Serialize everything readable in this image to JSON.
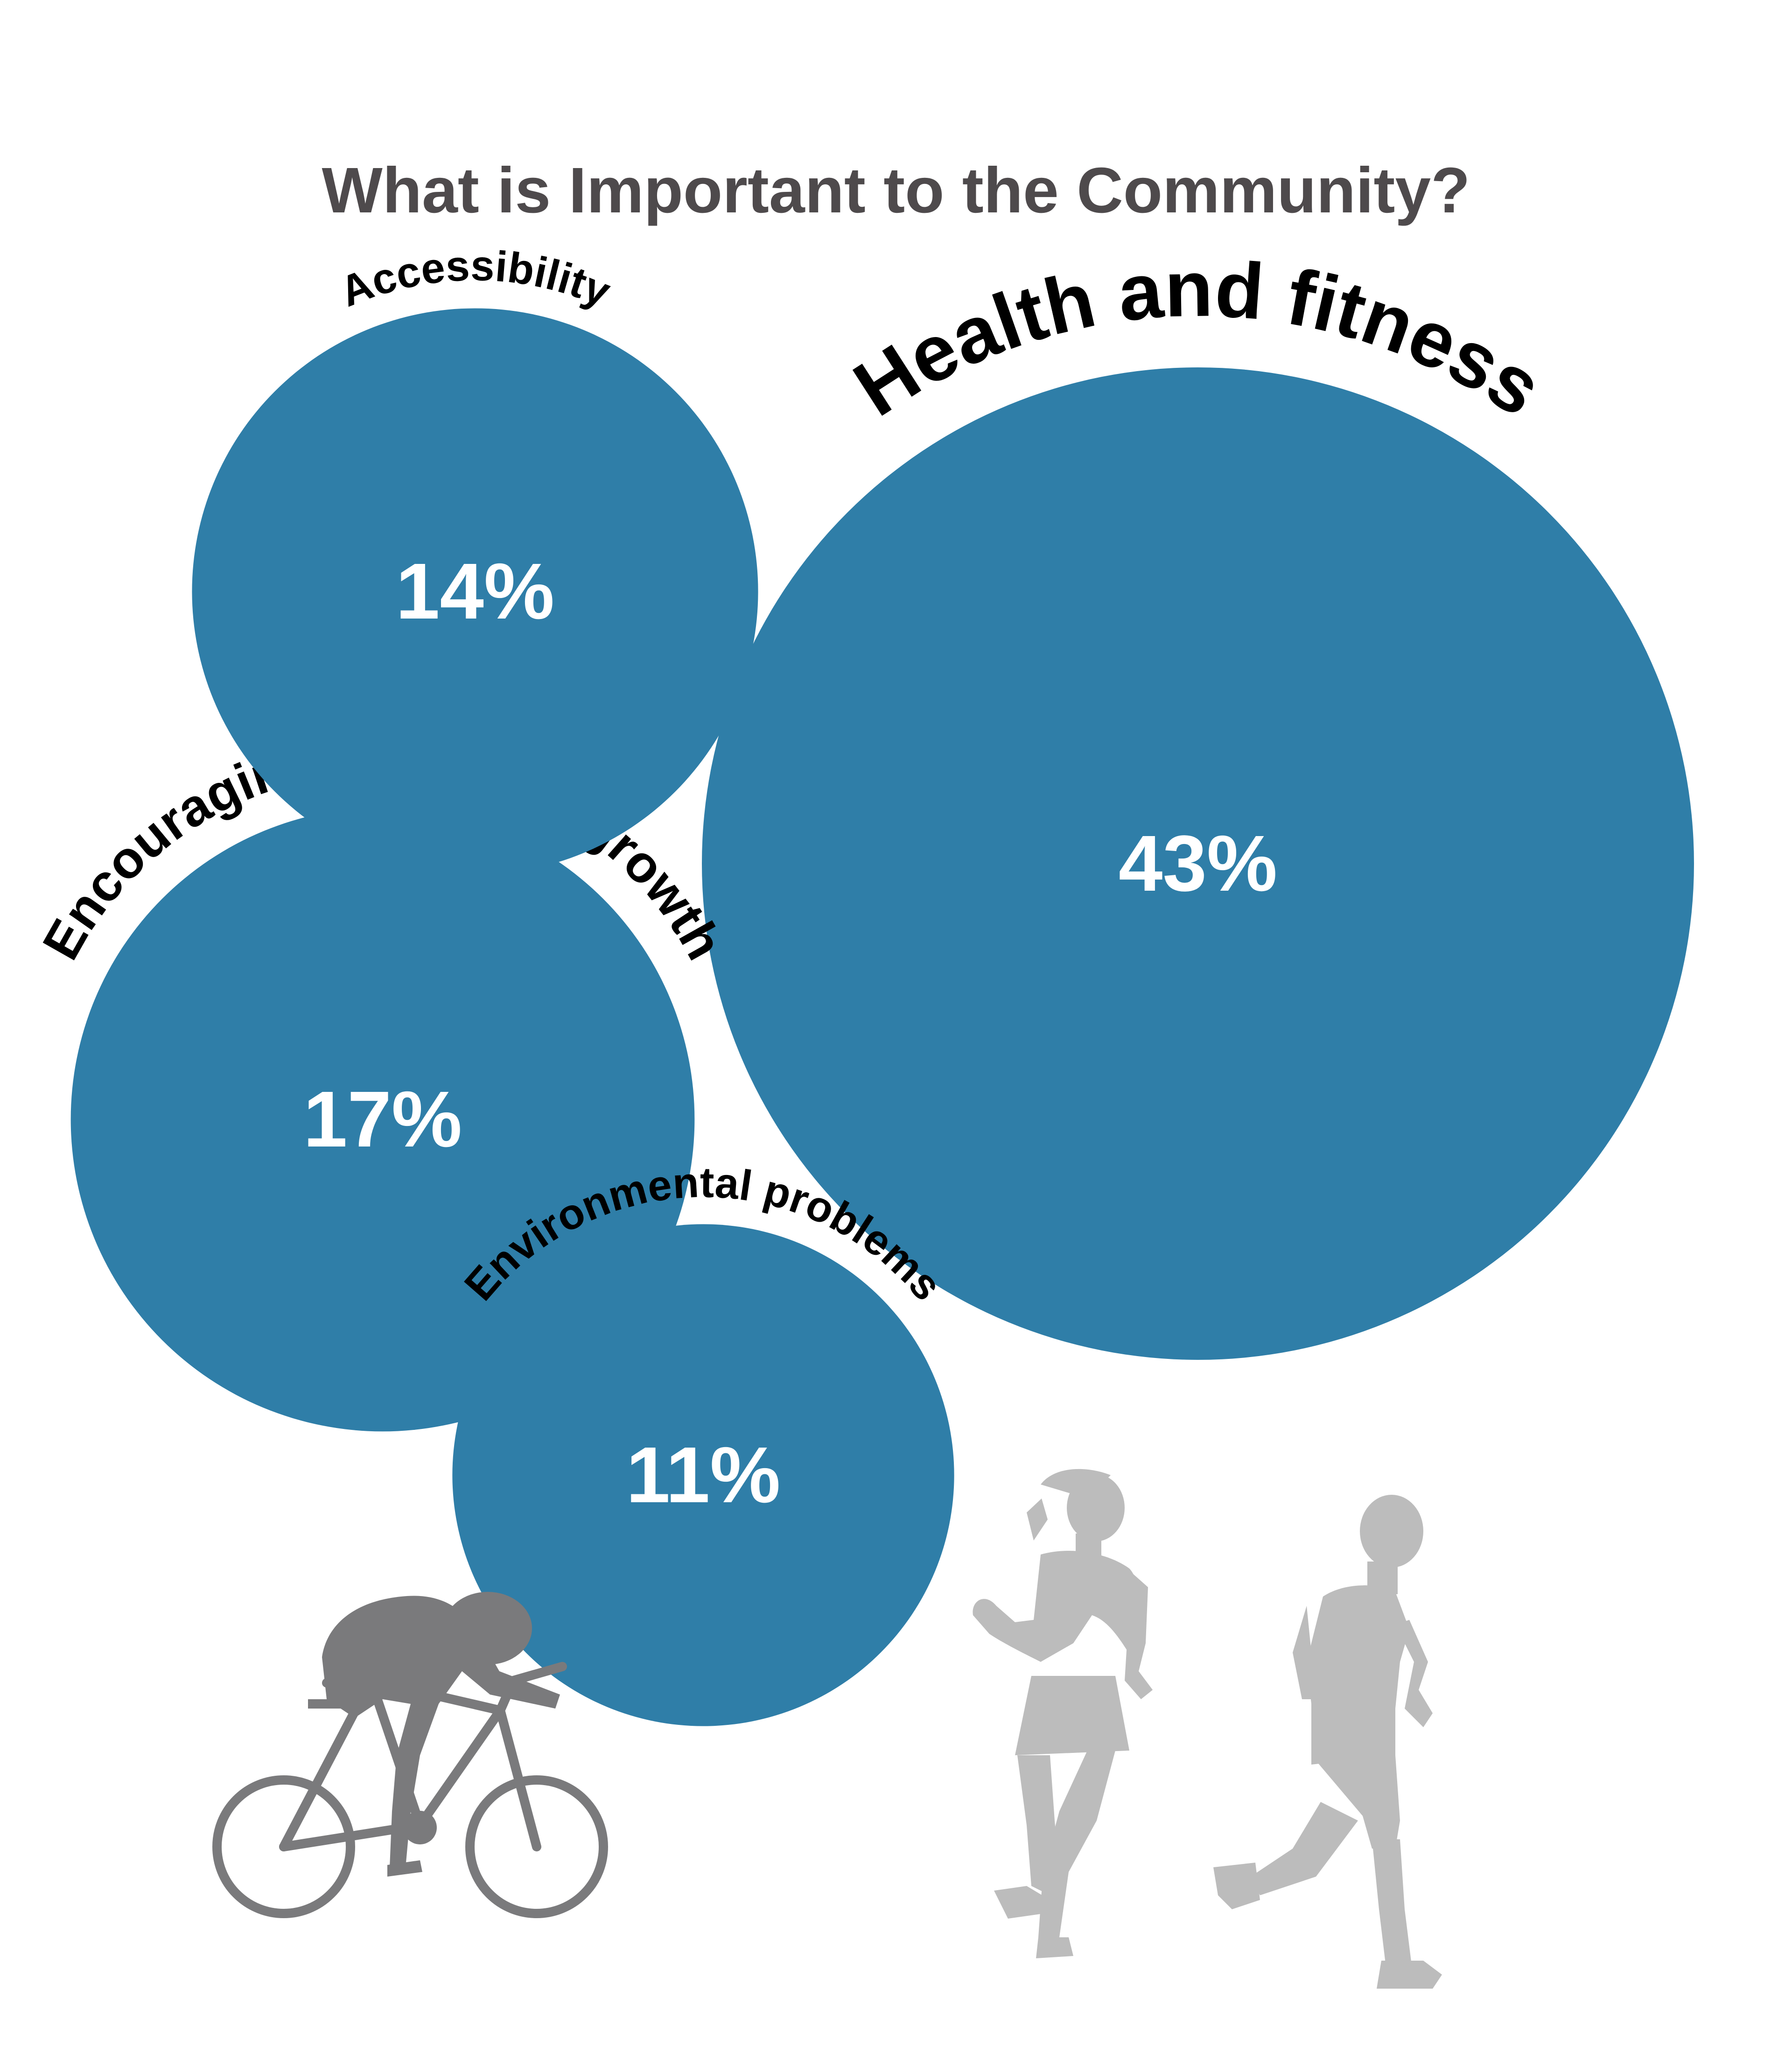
{
  "chart_data": {
    "type": "bubble",
    "title": "What is Important to the Community?",
    "unit": "%",
    "series": [
      {
        "name": "Health and fitness",
        "value": 43,
        "label": "43%"
      },
      {
        "name": "Encouraging economic growth",
        "value": 17,
        "label": "17%"
      },
      {
        "name": "Accessibility",
        "value": 14,
        "label": "14%"
      },
      {
        "name": "Environmental problems",
        "value": 11,
        "label": "11%"
      }
    ]
  },
  "colors": {
    "bubble": "#2f7ea8",
    "title": "#4e4a4c",
    "label": "#000000",
    "value_text": "#ffffff",
    "cyclist": "#7a7a7c",
    "runners": "#bcbcbc"
  },
  "icons": [
    "cyclist-icon",
    "female-runner-icon",
    "male-runner-icon"
  ]
}
